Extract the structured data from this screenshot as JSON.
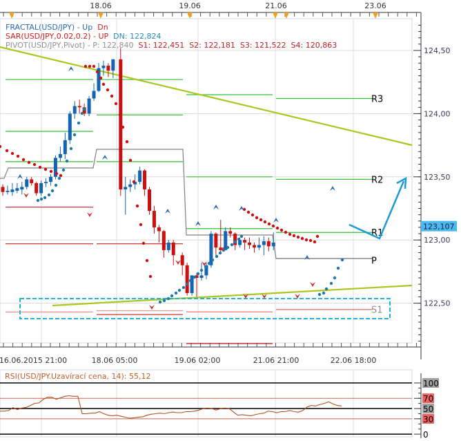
{
  "chart_data": [
    {
      "type": "candlestick",
      "title": "USD/JPY",
      "instrument": "USD/JPY",
      "top_date_ticks": [
        {
          "label": "18.06",
          "x": 146
        },
        {
          "label": "19.06",
          "x": 275
        },
        {
          "label": "21.06",
          "x": 400
        },
        {
          "label": "23.06",
          "x": 544
        }
      ],
      "top_markers_x": [
        17,
        146,
        275,
        399,
        415,
        544
      ],
      "xlabel_ticks": [
        {
          "label": "16.06.2015 21:00",
          "x": 48
        },
        {
          "label": "18.06 05:00",
          "x": 166
        },
        {
          "label": "19.06 02:00",
          "x": 286
        },
        {
          "label": "21.06 21:00",
          "x": 400
        },
        {
          "label": "22.06 18:00",
          "x": 512
        }
      ],
      "y_axis": {
        "ticks": [
          124.5,
          124.0,
          123.5,
          123.0,
          122.5
        ],
        "labels": [
          "124,50",
          "124,00",
          "123,50",
          "123,00",
          "122,50"
        ],
        "ylim": [
          122.2,
          124.75
        ]
      },
      "current_price": {
        "value": 123.107,
        "label": "123,107",
        "color": "#4db8f0"
      },
      "legend": {
        "fractal": {
          "prefix": "FRACTAL(USD/JPY) - ",
          "up": "Up",
          "dn": "Dn"
        },
        "sar": {
          "prefix": "SAR(USD/JPY,0.02,0.2) - ",
          "up": "UP",
          "dn": "DN: 122,824"
        },
        "pivot": {
          "prefix": "PIVOT(USD/JPY,Pivot) - ",
          "p": "P: 122,840",
          "s1": "S1: 122,451",
          "s2": "S2: 122,181",
          "s3": "S3: 121,522",
          "s4": "S4: 120,863"
        }
      },
      "pivot_labels": [
        {
          "label": "R3",
          "price": 124.12
        },
        {
          "label": "R2",
          "price": 123.48
        },
        {
          "label": "R1",
          "price": 123.06
        },
        {
          "label": "P",
          "price": 122.84
        },
        {
          "label": "S1",
          "price": 122.45
        }
      ],
      "candles": [
        {
          "o": 123.42,
          "c": 123.38,
          "h": 123.44,
          "l": 123.35
        },
        {
          "o": 123.38,
          "c": 123.39,
          "h": 123.43,
          "l": 123.36
        },
        {
          "o": 123.38,
          "c": 123.4,
          "h": 123.45,
          "l": 123.35
        },
        {
          "o": 123.39,
          "c": 123.41,
          "h": 123.45,
          "l": 123.37
        },
        {
          "o": 123.4,
          "c": 123.42,
          "h": 123.46,
          "l": 123.36
        },
        {
          "o": 123.42,
          "c": 123.48,
          "h": 123.5,
          "l": 123.4
        },
        {
          "o": 123.48,
          "c": 123.45,
          "h": 123.5,
          "l": 123.43
        },
        {
          "o": 123.45,
          "c": 123.37,
          "h": 123.46,
          "l": 123.35
        },
        {
          "o": 123.37,
          "c": 123.45,
          "h": 123.47,
          "l": 123.35
        },
        {
          "o": 123.45,
          "c": 123.46,
          "h": 123.49,
          "l": 123.42
        },
        {
          "o": 123.46,
          "c": 123.5,
          "h": 123.52,
          "l": 123.43
        },
        {
          "o": 123.5,
          "c": 123.65,
          "h": 123.67,
          "l": 123.48
        },
        {
          "o": 123.65,
          "c": 123.68,
          "h": 123.74,
          "l": 123.62
        },
        {
          "o": 123.68,
          "c": 123.79,
          "h": 123.85,
          "l": 123.64
        },
        {
          "o": 123.79,
          "c": 124.0,
          "h": 124.02,
          "l": 123.76
        },
        {
          "o": 124.0,
          "c": 124.06,
          "h": 124.1,
          "l": 123.96
        },
        {
          "o": 124.06,
          "c": 124.05,
          "h": 124.11,
          "l": 124.0
        },
        {
          "o": 124.05,
          "c": 124.0,
          "h": 124.08,
          "l": 123.98
        },
        {
          "o": 124.0,
          "c": 124.12,
          "h": 124.14,
          "l": 123.98
        },
        {
          "o": 124.12,
          "c": 124.18,
          "h": 124.24,
          "l": 124.1
        },
        {
          "o": 124.18,
          "c": 124.36,
          "h": 124.4,
          "l": 124.17
        },
        {
          "o": 124.36,
          "c": 124.38,
          "h": 124.42,
          "l": 124.3
        },
        {
          "o": 124.38,
          "c": 124.34,
          "h": 124.4,
          "l": 124.29
        },
        {
          "o": 124.34,
          "c": 124.43,
          "h": 124.43,
          "l": 124.28
        },
        {
          "o": 124.43,
          "c": 123.4,
          "h": 124.52,
          "l": 123.35
        },
        {
          "o": 123.4,
          "c": 123.42,
          "h": 123.5,
          "l": 123.2
        },
        {
          "o": 123.42,
          "c": 123.44,
          "h": 123.48,
          "l": 123.38
        },
        {
          "o": 123.44,
          "c": 123.46,
          "h": 123.52,
          "l": 123.4
        },
        {
          "o": 123.46,
          "c": 123.55,
          "h": 123.58,
          "l": 123.44
        },
        {
          "o": 123.55,
          "c": 123.4,
          "h": 123.56,
          "l": 123.35
        },
        {
          "o": 123.4,
          "c": 123.23,
          "h": 123.42,
          "l": 123.2
        },
        {
          "o": 123.23,
          "c": 123.1,
          "h": 123.27,
          "l": 123.05
        },
        {
          "o": 123.1,
          "c": 123.07,
          "h": 123.12,
          "l": 122.98
        },
        {
          "o": 123.07,
          "c": 122.92,
          "h": 123.08,
          "l": 122.86
        },
        {
          "o": 122.92,
          "c": 122.98,
          "h": 123.0,
          "l": 122.9
        },
        {
          "o": 122.98,
          "c": 122.88,
          "h": 123.0,
          "l": 122.8
        },
        {
          "o": 122.88,
          "c": 122.8,
          "h": 122.9,
          "l": 122.72
        },
        {
          "o": 122.8,
          "c": 122.58,
          "h": 122.82,
          "l": 122.56
        },
        {
          "o": 122.58,
          "c": 122.72,
          "h": 122.72,
          "l": 122.56
        },
        {
          "o": 122.72,
          "c": 122.7,
          "h": 122.74,
          "l": 122.55
        },
        {
          "o": 122.7,
          "c": 122.72,
          "h": 122.82,
          "l": 122.68
        },
        {
          "o": 122.72,
          "c": 122.8,
          "h": 122.82,
          "l": 122.69
        },
        {
          "o": 122.8,
          "c": 123.05,
          "h": 123.07,
          "l": 122.78
        },
        {
          "o": 123.05,
          "c": 122.94,
          "h": 123.06,
          "l": 122.88
        },
        {
          "o": 122.94,
          "c": 122.92,
          "h": 123.16,
          "l": 122.9
        },
        {
          "o": 122.92,
          "c": 123.07,
          "h": 123.1,
          "l": 122.92
        },
        {
          "o": 123.07,
          "c": 123.05,
          "h": 123.1,
          "l": 123.02
        },
        {
          "o": 123.05,
          "c": 122.96,
          "h": 123.06,
          "l": 122.92
        },
        {
          "o": 122.96,
          "c": 123.0,
          "h": 123.02,
          "l": 122.94
        },
        {
          "o": 123.0,
          "c": 122.98,
          "h": 123.02,
          "l": 122.92
        },
        {
          "o": 122.98,
          "c": 122.96,
          "h": 123.02,
          "l": 122.93
        },
        {
          "o": 122.96,
          "c": 122.94,
          "h": 122.98,
          "l": 122.9
        },
        {
          "o": 122.94,
          "c": 122.96,
          "h": 123.02,
          "l": 122.92
        },
        {
          "o": 122.96,
          "c": 122.99,
          "h": 123.03,
          "l": 122.88
        },
        {
          "o": 122.99,
          "c": 122.95,
          "h": 123.02,
          "l": 122.91
        },
        {
          "o": 122.95,
          "c": 122.98,
          "h": 123.06,
          "l": 122.92
        }
      ],
      "rsi": {
        "label": "RSI(USD/JPY.Uzavírací cena, 14): 55,12",
        "value": 55.12,
        "levels": [
          100,
          70,
          50,
          30,
          0
        ],
        "level_colors": {
          "100": "#a0a0a0",
          "70": "#f06060",
          "50": "#a0a0a0",
          "30": "#f06060",
          "0": "#ffffff"
        },
        "ylim": [
          0,
          100
        ],
        "values": [
          45,
          45,
          46,
          52,
          48,
          51,
          52,
          56,
          60,
          61,
          68,
          72,
          72,
          68,
          71,
          74,
          75,
          74,
          74,
          40,
          40,
          41,
          41,
          44,
          40,
          37,
          36,
          37,
          35,
          33,
          31,
          32,
          33,
          34,
          37,
          39,
          40,
          41,
          40,
          42,
          43,
          42,
          42,
          44,
          44,
          45,
          47,
          50,
          51,
          50,
          47,
          50,
          51,
          50,
          43,
          37,
          38,
          37,
          36,
          38,
          40,
          41,
          45,
          44,
          42,
          44,
          44,
          46,
          44,
          43,
          46,
          53,
          56,
          55,
          58,
          60,
          63,
          59,
          56,
          55
        ]
      },
      "colors": {
        "bull": "#1464b4",
        "bear": "#cc1010",
        "sar_dn": "#cc1010",
        "sar_up": "#1a7aaa",
        "trendline": "#a8c820",
        "pivot_green": "#30c030",
        "pivot_red": "#cc2020",
        "pivot_gray": "#808080",
        "projection": "#1a9ad8",
        "s1_box": "#20b0e0",
        "grid": "#dcdcdc"
      }
    }
  ]
}
